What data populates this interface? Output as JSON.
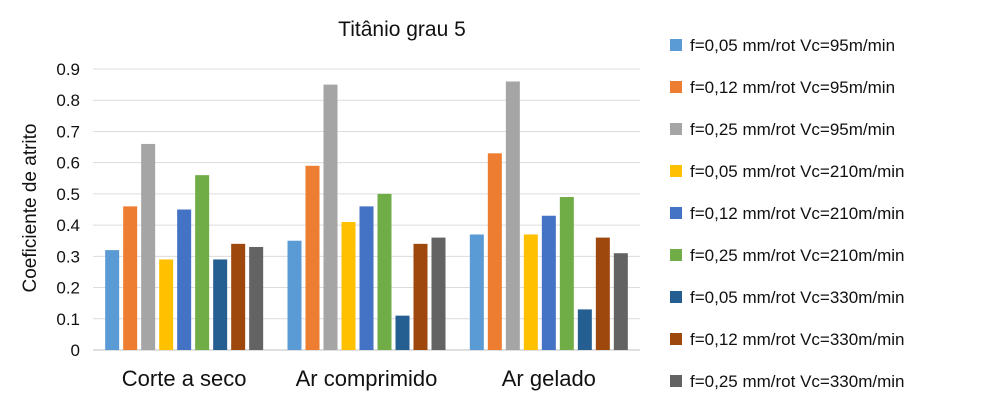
{
  "chart_data": {
    "type": "bar",
    "title": "Titânio grau 5",
    "xlabel": "",
    "ylabel": "Coeficiente de atrito",
    "ylim": [
      0,
      0.9
    ],
    "yticks": [
      "0",
      "0.1",
      "0.2",
      "0.3",
      "0.4",
      "0.5",
      "0.6",
      "0.7",
      "0.8",
      "0.9"
    ],
    "grid": true,
    "legend_position": "right",
    "categories": [
      "Corte a seco",
      "Ar comprimido",
      "Ar gelado"
    ],
    "series": [
      {
        "name": "f=0,05 mm/rot Vc=95m/min",
        "color": "#5b9bd5",
        "values": [
          0.32,
          0.35,
          0.37
        ]
      },
      {
        "name": "f=0,12 mm/rot Vc=95m/min",
        "color": "#ed7d31",
        "values": [
          0.46,
          0.59,
          0.63
        ]
      },
      {
        "name": "f=0,25 mm/rot Vc=95m/min",
        "color": "#a5a5a5",
        "values": [
          0.66,
          0.85,
          0.86
        ]
      },
      {
        "name": "f=0,05 mm/rot Vc=210m/min",
        "color": "#ffc000",
        "values": [
          0.29,
          0.41,
          0.37
        ]
      },
      {
        "name": "f=0,12 mm/rot Vc=210m/min",
        "color": "#4472c4",
        "values": [
          0.45,
          0.46,
          0.43
        ]
      },
      {
        "name": "f=0,25 mm/rot Vc=210m/min",
        "color": "#70ad47",
        "values": [
          0.56,
          0.5,
          0.49
        ]
      },
      {
        "name": "f=0,05 mm/rot Vc=330m/min",
        "color": "#255e91",
        "values": [
          0.29,
          0.11,
          0.13
        ]
      },
      {
        "name": "f=0,12 mm/rot Vc=330m/min",
        "color": "#9e480e",
        "values": [
          0.34,
          0.34,
          0.36
        ]
      },
      {
        "name": "f=0,25 mm/rot Vc=330m/min",
        "color": "#636363",
        "values": [
          0.33,
          0.36,
          0.31
        ]
      }
    ]
  }
}
